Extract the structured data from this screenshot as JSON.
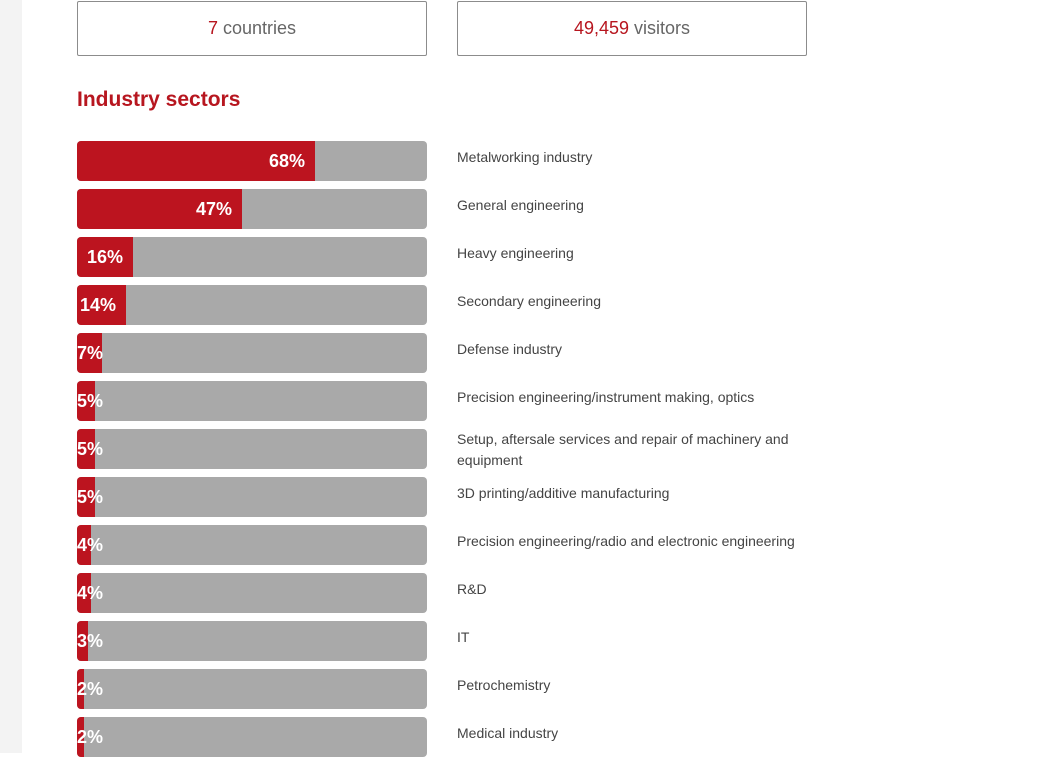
{
  "colors": {
    "accent": "#b7161f",
    "bar_fill": "#bc141f",
    "bar_track": "#a9a9a9",
    "text": "#444444",
    "muted_text": "#666666"
  },
  "stats": {
    "countries": {
      "number": "7",
      "label": "countries"
    },
    "visitors": {
      "number": "49,459",
      "label": "visitors"
    }
  },
  "section": {
    "title": "Industry sectors"
  },
  "sectors": [
    {
      "label": "Metalworking industry",
      "percent": 68,
      "percent_text": "68%"
    },
    {
      "label": "General engineering",
      "percent": 47,
      "percent_text": "47%"
    },
    {
      "label": "Heavy engineering",
      "percent": 16,
      "percent_text": "16%"
    },
    {
      "label": "Secondary engineering",
      "percent": 14,
      "percent_text": "14%"
    },
    {
      "label": "Defense industry",
      "percent": 7,
      "percent_text": "7%"
    },
    {
      "label": "Precision engineering/instrument making, optics",
      "percent": 5,
      "percent_text": "5%"
    },
    {
      "label": "Setup, aftersale services and repair of machinery and equipment",
      "percent": 5,
      "percent_text": "5%"
    },
    {
      "label": "3D printing/additive manufacturing",
      "percent": 5,
      "percent_text": "5%"
    },
    {
      "label": "Precision engineering/radio and electronic engineering",
      "percent": 4,
      "percent_text": "4%"
    },
    {
      "label": "R&D",
      "percent": 4,
      "percent_text": "4%"
    },
    {
      "label": "IT",
      "percent": 3,
      "percent_text": "3%"
    },
    {
      "label": "Petrochemistry",
      "percent": 2,
      "percent_text": "2%"
    },
    {
      "label": "Medical industry",
      "percent": 2,
      "percent_text": "2%"
    }
  ]
}
